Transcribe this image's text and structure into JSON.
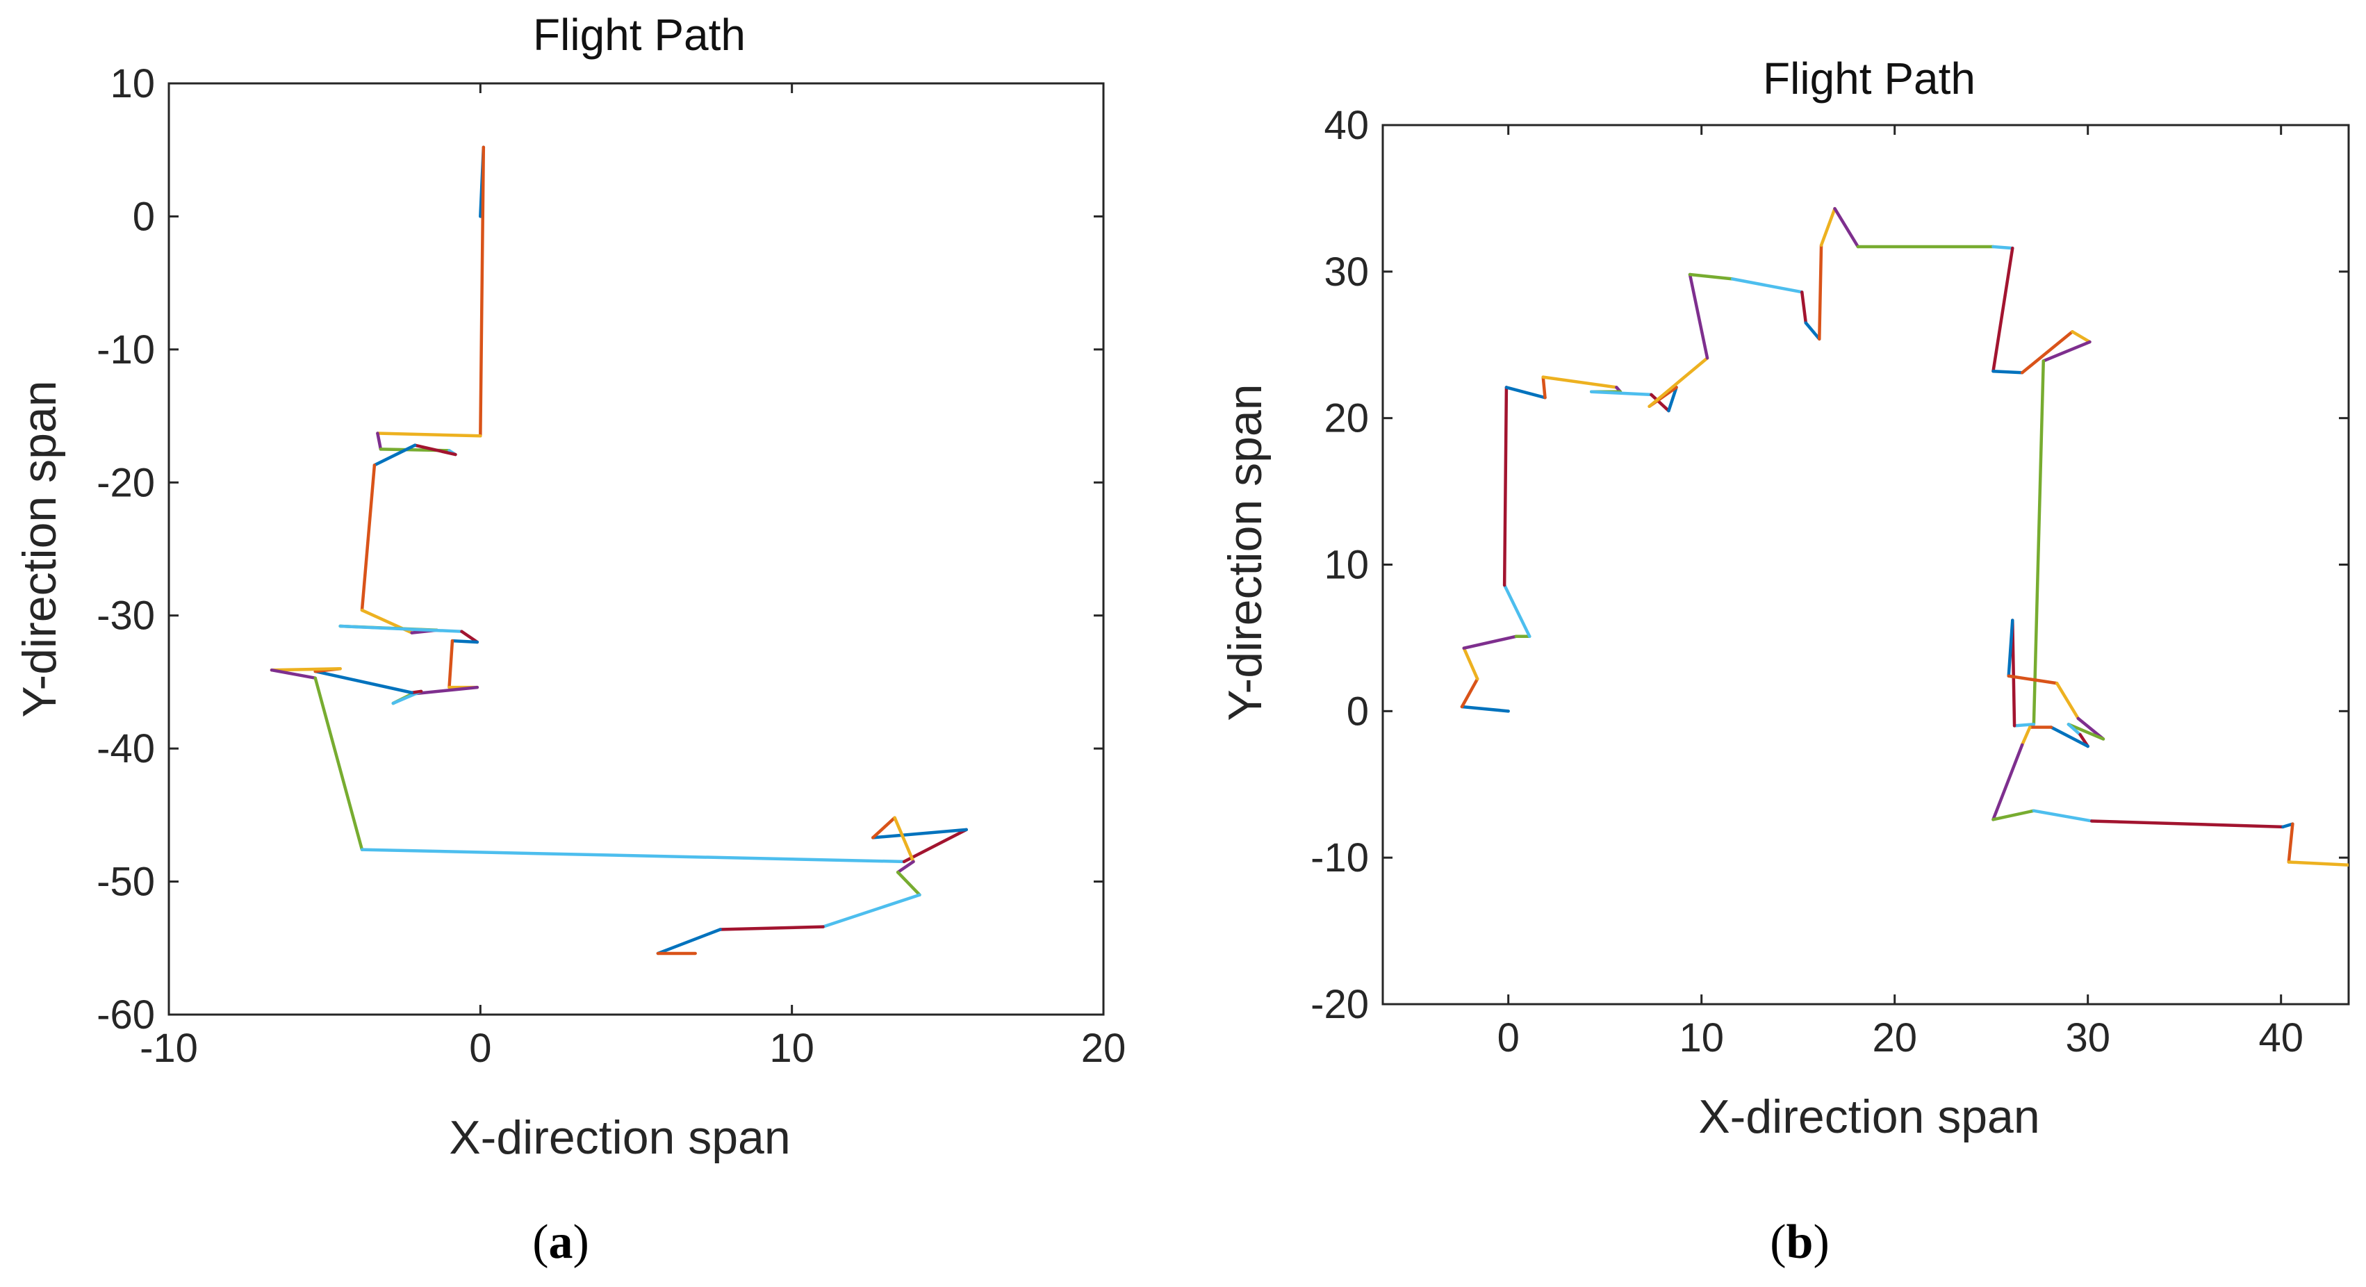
{
  "palette": [
    "#0072BD",
    "#D95319",
    "#EDB120",
    "#7E2F8E",
    "#77AC30",
    "#4DBEEE",
    "#A2142F"
  ],
  "chart_data": [
    {
      "type": "line",
      "id": "a",
      "title": "Flight Path",
      "xlabel": "X-direction span",
      "ylabel": "Y-direction span",
      "caption_open": "(",
      "caption_letter": "a",
      "caption_close": ")",
      "xlim": [
        -10,
        20
      ],
      "ylim": [
        -60,
        10
      ],
      "xticks": [
        -10,
        0,
        10,
        20
      ],
      "xtick_labels": [
        "-10",
        "0",
        "10",
        "20"
      ],
      "yticks": [
        10,
        0,
        -10,
        -20,
        -30,
        -40,
        -50,
        -60
      ],
      "ytick_labels": [
        "10",
        "0",
        "-10",
        "-20",
        "-30",
        "-40",
        "-50",
        "-60"
      ],
      "path": [
        [
          0,
          0
        ],
        [
          0.1,
          5.2
        ],
        [
          0,
          -16.5
        ],
        [
          -3.3,
          -16.3
        ],
        [
          -3.2,
          -17.5
        ],
        [
          -1,
          -17.6
        ],
        [
          -0.8,
          -17.9
        ],
        [
          -2.1,
          -17.2
        ],
        [
          -3.4,
          -18.7
        ],
        [
          -3.8,
          -29.6
        ],
        [
          -2.2,
          -31.3
        ],
        [
          -1.4,
          -31.1
        ],
        [
          -4.5,
          -30.8
        ],
        [
          -0.6,
          -31.2
        ],
        [
          -0.1,
          -32.0
        ],
        [
          -0.9,
          -31.9
        ],
        [
          -1.0,
          -35.4
        ],
        [
          -0.1,
          -35.4
        ],
        [
          -2.2,
          -35.9
        ],
        [
          -2.8,
          -36.6
        ],
        [
          -1.9,
          -35.7
        ],
        [
          -2.2,
          -35.8
        ],
        [
          -5.3,
          -34.2
        ],
        [
          -4.5,
          -34.0
        ],
        [
          -6.7,
          -34.1
        ],
        [
          -5.3,
          -34.7
        ],
        [
          -3.8,
          -47.6
        ],
        [
          13.6,
          -48.5
        ],
        [
          15.6,
          -46.1
        ],
        [
          12.6,
          -46.7
        ],
        [
          13.3,
          -45.2
        ],
        [
          13.9,
          -48.5
        ],
        [
          13.4,
          -49.3
        ],
        [
          14.1,
          -51.0
        ],
        [
          11.0,
          -53.4
        ],
        [
          7.7,
          -53.6
        ],
        [
          5.7,
          -55.4
        ],
        [
          6.9,
          -55.4
        ]
      ]
    },
    {
      "type": "line",
      "id": "b",
      "title": "Flight Path",
      "xlabel": "X-direction span",
      "ylabel": "Y-direction span",
      "caption_open": "(",
      "caption_letter": "b",
      "caption_close": ")",
      "xlim": [
        -6.5,
        43.5
      ],
      "ylim": [
        -20,
        40
      ],
      "xticks": [
        0,
        10,
        20,
        30,
        40
      ],
      "xtick_labels": [
        "0",
        "10",
        "20",
        "30",
        "40"
      ],
      "yticks": [
        40,
        30,
        20,
        10,
        0,
        -10,
        -20
      ],
      "ytick_labels": [
        "40",
        "30",
        "20",
        "10",
        "0",
        "-10",
        "-20"
      ],
      "path": [
        [
          0,
          0
        ],
        [
          -2.4,
          0.3
        ],
        [
          -1.6,
          2.2
        ],
        [
          -2.3,
          4.3
        ],
        [
          0.4,
          5.1
        ],
        [
          1.1,
          5.1
        ],
        [
          -0.2,
          8.6
        ],
        [
          -0.1,
          22.1
        ],
        [
          1.9,
          21.4
        ],
        [
          1.8,
          22.8
        ],
        [
          5.6,
          22.1
        ],
        [
          5.8,
          21.8
        ],
        [
          4.3,
          21.8
        ],
        [
          7.4,
          21.6
        ],
        [
          8.3,
          20.5
        ],
        [
          8.7,
          22.1
        ],
        [
          7.3,
          20.8
        ],
        [
          10.3,
          24.1
        ],
        [
          9.4,
          29.8
        ],
        [
          11.6,
          29.5
        ],
        [
          15.2,
          28.6
        ],
        [
          15.4,
          26.5
        ],
        [
          16.1,
          25.4
        ],
        [
          16.2,
          31.8
        ],
        [
          16.9,
          34.3
        ],
        [
          18.1,
          31.7
        ],
        [
          25.1,
          31.7
        ],
        [
          26.1,
          31.6
        ],
        [
          25.1,
          23.2
        ],
        [
          26.6,
          23.1
        ],
        [
          29.2,
          25.9
        ],
        [
          30.1,
          25.2
        ],
        [
          27.7,
          23.9
        ],
        [
          27.2,
          -0.9
        ],
        [
          26.2,
          -1.0
        ],
        [
          26.1,
          6.2
        ],
        [
          25.9,
          2.4
        ],
        [
          28.4,
          1.9
        ],
        [
          29.5,
          -0.5
        ],
        [
          30.8,
          -1.9
        ],
        [
          29.0,
          -0.9
        ],
        [
          29.6,
          -1.6
        ],
        [
          30.0,
          -2.4
        ],
        [
          28.1,
          -1.1
        ],
        [
          27.0,
          -1.1
        ],
        [
          26.6,
          -2.3
        ],
        [
          25.1,
          -7.4
        ],
        [
          27.2,
          -6.8
        ],
        [
          30.2,
          -7.5
        ],
        [
          40.1,
          -7.9
        ],
        [
          40.6,
          -7.7
        ],
        [
          40.4,
          -10.3
        ],
        [
          43.5,
          -10.5
        ]
      ]
    }
  ]
}
